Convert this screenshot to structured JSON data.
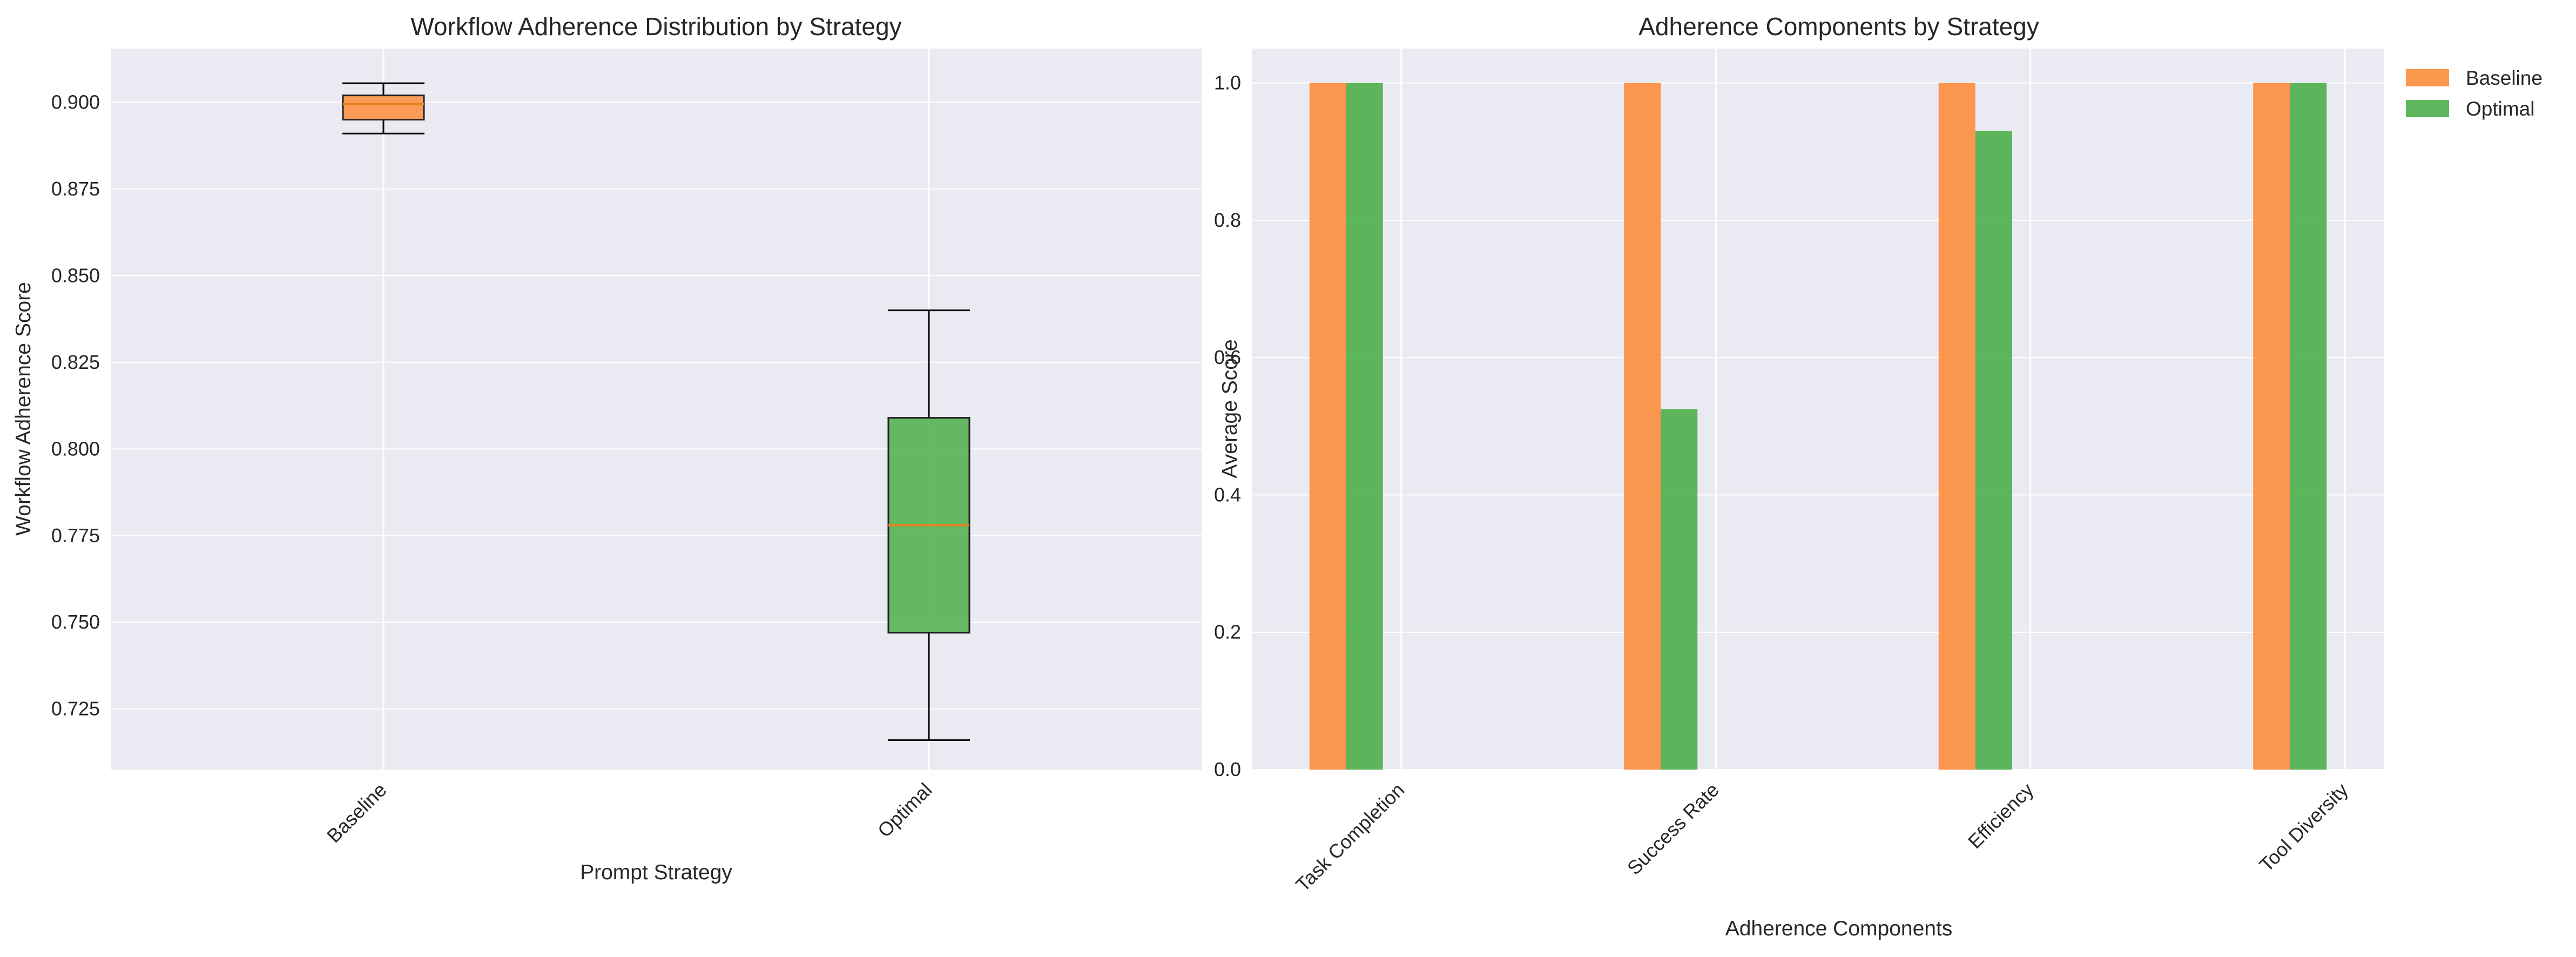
{
  "chart_data": [
    {
      "type": "box",
      "title": "Workflow Adherence Distribution by Strategy",
      "xlabel": "Prompt Strategy",
      "ylabel": "Workflow Adherence Score",
      "categories": [
        "Baseline",
        "Optimal"
      ],
      "ylim": [
        0.7075,
        0.9155
      ],
      "yticks": [
        "0.725",
        "0.750",
        "0.775",
        "0.800",
        "0.825",
        "0.850",
        "0.875",
        "0.900"
      ],
      "grid": true,
      "colors": [
        "#fd8d3c",
        "#4daf4a"
      ],
      "boxes": [
        {
          "category": "Baseline",
          "whisker_low": 0.891,
          "q1": 0.895,
          "median": 0.8995,
          "q3": 0.902,
          "whisker_high": 0.9055
        },
        {
          "category": "Optimal",
          "whisker_low": 0.716,
          "q1": 0.747,
          "median": 0.778,
          "q3": 0.809,
          "whisker_high": 0.84
        }
      ]
    },
    {
      "type": "bar",
      "title": "Adherence Components by Strategy",
      "xlabel": "Adherence Components",
      "ylabel": "Average Score",
      "categories": [
        "Task Completion",
        "Success Rate",
        "Efficiency",
        "Tool Diversity"
      ],
      "ylim": [
        0,
        1.05
      ],
      "yticks": [
        "0.0",
        "0.2",
        "0.4",
        "0.6",
        "0.8",
        "1.0"
      ],
      "grid": true,
      "legend_position": "upper right, outside plot",
      "series": [
        {
          "name": "Baseline",
          "color": "#fd8d3c",
          "values": [
            1.0,
            1.0,
            1.0,
            1.0
          ]
        },
        {
          "name": "Optimal",
          "color": "#4daf4a",
          "values": [
            1.0,
            0.525,
            0.93,
            1.0
          ]
        }
      ]
    }
  ]
}
